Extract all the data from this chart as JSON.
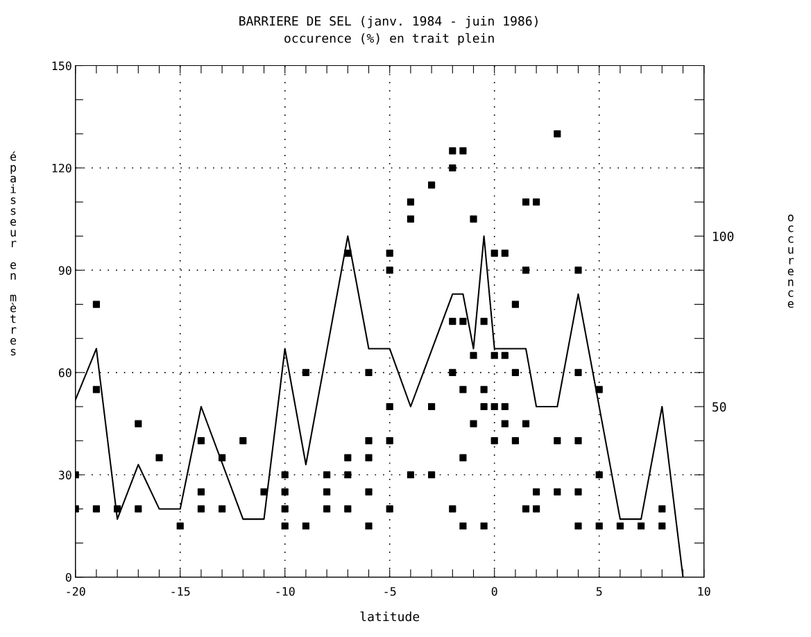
{
  "chart_data": {
    "type": "scatter",
    "title": "BARRIERE DE SEL (janv. 1984 - juin 1986)",
    "subtitle": "occurence (%) en trait plein",
    "xlabel": "latitude",
    "ylabel": "épaisseur en mètres",
    "y2label": "occurence",
    "xlim": [
      -20,
      10
    ],
    "xticks": [
      -20,
      {
        "value": -19,
        "label": null
      },
      {
        "value": -18,
        "label": null
      },
      {
        "value": -17,
        "label": null
      },
      {
        "value": -16,
        "label": null
      },
      -15,
      {
        "value": -14,
        "label": null
      },
      {
        "value": -13,
        "label": null
      },
      {
        "value": -12,
        "label": null
      },
      {
        "value": -11,
        "label": null
      },
      -10,
      {
        "value": -9,
        "label": null
      },
      {
        "value": -8,
        "label": null
      },
      {
        "value": -7,
        "label": null
      },
      {
        "value": -6,
        "label": null
      },
      -5,
      {
        "value": -4,
        "label": null
      },
      {
        "value": -3,
        "label": null
      },
      {
        "value": -2,
        "label": null
      },
      {
        "value": -1,
        "label": null
      },
      0,
      {
        "value": 1,
        "label": null
      },
      {
        "value": 2,
        "label": null
      },
      {
        "value": 3,
        "label": null
      },
      {
        "value": 4,
        "label": null
      },
      5,
      {
        "value": 6,
        "label": null
      },
      {
        "value": 7,
        "label": null
      },
      {
        "value": 8,
        "label": null
      },
      {
        "value": 9,
        "label": null
      },
      10
    ],
    "ylim": [
      0,
      150
    ],
    "yticks": [
      0,
      {
        "value": 10,
        "label": null
      },
      {
        "value": 20,
        "label": null
      },
      30,
      {
        "value": 40,
        "label": null
      },
      {
        "value": 50,
        "label": null
      },
      60,
      {
        "value": 70,
        "label": null
      },
      {
        "value": 80,
        "label": null
      },
      90,
      {
        "value": 100,
        "label": null
      },
      {
        "value": 110,
        "label": null
      },
      120,
      {
        "value": 130,
        "label": null
      },
      {
        "value": 140,
        "label": null
      },
      150
    ],
    "y2lim": [
      0,
      150
    ],
    "y2ticks": [
      {
        "value": 10,
        "label": null
      },
      {
        "value": 20,
        "label": null
      },
      {
        "value": 30,
        "label": null
      },
      {
        "value": 40,
        "label": null
      },
      50,
      {
        "value": 60,
        "label": null
      },
      {
        "value": 70,
        "label": null
      },
      {
        "value": 80,
        "label": null
      },
      {
        "value": 90,
        "label": null
      },
      100,
      {
        "value": 110,
        "label": null
      },
      {
        "value": 120,
        "label": null
      },
      {
        "value": 130,
        "label": null
      },
      {
        "value": 140,
        "label": null
      }
    ],
    "grid": true,
    "series": [
      {
        "color": "#000000",
        "marker": "square",
        "x": [
          -20,
          -20,
          -19,
          -19,
          -19,
          -18,
          -17,
          -17,
          -16,
          -15,
          -14,
          -14,
          -14,
          -13,
          -13,
          -12,
          -11,
          -10,
          -10,
          -10,
          -10,
          -9,
          -9,
          -8,
          -8,
          -8,
          -7,
          -7,
          -7,
          -7,
          -6,
          -6,
          -6,
          -6,
          -6,
          -5,
          -5,
          -5,
          -5,
          -5,
          -4,
          -4,
          -4,
          -3,
          -3,
          -3,
          -2,
          -2,
          -2,
          -2,
          -2,
          -1.5,
          -1.5,
          -1.5,
          -1.5,
          -1.5,
          -1,
          -1,
          -1,
          -0.5,
          -0.5,
          -0.5,
          -0.5,
          0,
          0,
          0,
          0,
          0.5,
          0.5,
          0.5,
          0.5,
          1,
          1,
          1,
          1.5,
          1.5,
          1.5,
          1.5,
          2,
          2,
          2,
          3,
          3,
          3,
          4,
          4,
          4,
          4,
          4,
          5,
          5,
          5,
          6,
          7,
          8,
          8
        ],
        "values": [
          30,
          20,
          20,
          55,
          80,
          20,
          45,
          20,
          35,
          15,
          40,
          25,
          20,
          35,
          20,
          40,
          25,
          30,
          25,
          20,
          15,
          60,
          15,
          30,
          25,
          20,
          95,
          35,
          30,
          20,
          60,
          40,
          35,
          25,
          15,
          95,
          90,
          50,
          40,
          20,
          110,
          105,
          30,
          115,
          50,
          30,
          125,
          120,
          75,
          60,
          20,
          125,
          75,
          55,
          35,
          15,
          105,
          65,
          45,
          75,
          55,
          50,
          15,
          95,
          65,
          50,
          40,
          95,
          65,
          50,
          45,
          80,
          60,
          40,
          110,
          90,
          45,
          20,
          110,
          25,
          20,
          130,
          40,
          25,
          90,
          60,
          40,
          25,
          15,
          55,
          30,
          15,
          15,
          15,
          20,
          15
        ]
      },
      {
        "type": "line",
        "axis": "y2",
        "color": "#000000",
        "marker": "none",
        "line_style": "solid",
        "x": [
          -20,
          -19,
          -18,
          -17,
          -16,
          -15,
          -14,
          -12,
          -11,
          -10,
          -9,
          -7,
          -6,
          -5,
          -4,
          -2,
          -1.5,
          -1,
          -0.5,
          0,
          1.5,
          2,
          3,
          4,
          6,
          7,
          8,
          9
        ],
        "values": [
          52,
          67,
          17,
          33,
          20,
          20,
          50,
          17,
          17,
          67,
          33,
          100,
          67,
          67,
          50,
          83,
          83,
          67,
          100,
          67,
          67,
          50,
          50,
          83,
          17,
          17,
          50,
          0
        ]
      }
    ]
  }
}
